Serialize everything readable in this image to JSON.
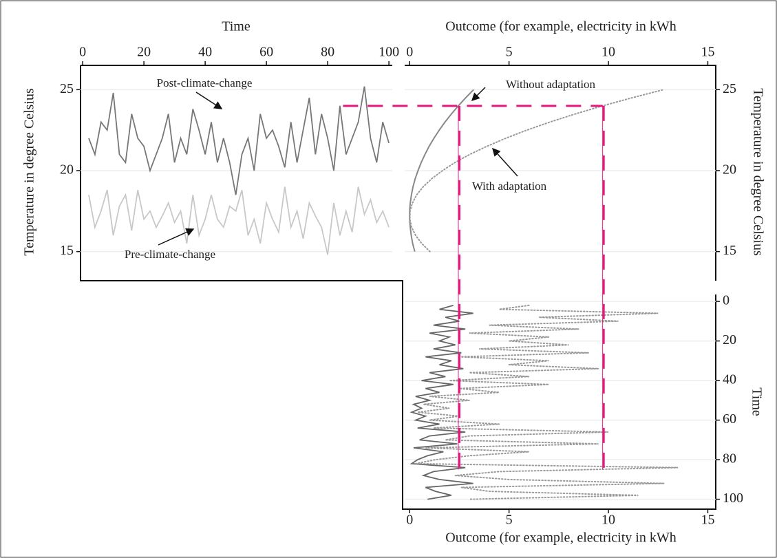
{
  "chart_data": [
    {
      "type": "line",
      "xlabel": "Time",
      "ylabel": "Temperature in degree Celsius",
      "x": [
        2,
        4,
        6,
        8,
        10,
        12,
        14,
        16,
        18,
        20,
        22,
        24,
        26,
        28,
        30,
        32,
        34,
        36,
        38,
        40,
        42,
        44,
        46,
        48,
        50,
        52,
        54,
        56,
        58,
        60,
        62,
        64,
        66,
        68,
        70,
        72,
        74,
        76,
        78,
        80,
        82,
        84,
        86,
        88,
        90,
        92,
        94,
        96,
        98,
        100
      ],
      "series": [
        {
          "name": "Post-climate-change",
          "color": "#777777",
          "values": [
            22,
            21,
            23,
            22.5,
            24.8,
            21,
            20.5,
            23.5,
            22,
            21.5,
            20,
            21,
            22,
            23.5,
            20.5,
            22,
            21,
            23.8,
            22.5,
            21,
            23,
            20.5,
            22,
            20.5,
            18.5,
            21,
            22,
            20,
            23.5,
            22,
            22.5,
            21.5,
            20.2,
            23,
            20.5,
            22.5,
            24.5,
            21,
            23.5,
            22,
            20,
            24,
            21,
            22,
            23,
            25.2,
            22,
            20.5,
            23,
            21.7
          ]
        },
        {
          "name": "Pre-climate-change",
          "color": "#c8c8c8",
          "values": [
            18.5,
            16.5,
            17.5,
            18.8,
            16,
            17.8,
            18.5,
            16.3,
            18.8,
            17,
            17.5,
            16.5,
            17.2,
            18,
            16.8,
            17.5,
            15.5,
            18.5,
            16,
            17,
            18.5,
            17,
            16.5,
            17.8,
            17.5,
            18.8,
            16,
            17,
            15.5,
            18,
            17,
            16.2,
            19,
            16.5,
            17.5,
            15.8,
            18,
            17.2,
            16.5,
            14.8,
            18,
            16,
            17.5,
            16.2,
            19,
            17.3,
            18.2,
            16.8,
            17.5,
            16.5
          ]
        }
      ],
      "xlim": [
        -0.7,
        101.1
      ],
      "xticks": [
        0,
        20,
        40,
        60,
        80,
        100
      ],
      "ylim": [
        13.2,
        26.5
      ],
      "yticks": [
        15,
        20,
        25
      ],
      "grid": true
    },
    {
      "type": "curve",
      "xlabel": "Outcome (for example, electricity in kWh",
      "ylabel": "Temperature in degree Celsius",
      "series": [
        {
          "name": "Without adaptation",
          "color": "#888888",
          "dashed": false,
          "x": [
            0.26,
            0.15,
            0.08,
            0.03,
            0,
            0,
            0.03,
            0.09,
            0.17,
            0.28,
            0.42,
            0.58,
            0.77,
            0.98,
            1.22,
            1.49,
            1.78,
            2.1,
            2.45,
            2.82,
            3.22
          ],
          "values": [
            15,
            15.5,
            16,
            16.5,
            17,
            17.5,
            18,
            18.5,
            19,
            19.5,
            20,
            20.5,
            21,
            21.5,
            22,
            22.5,
            23,
            23.5,
            24,
            24.5,
            25
          ]
        },
        {
          "name": "With adaptation",
          "color": "#999999",
          "dashed": true,
          "x": [
            1.02,
            0.61,
            0.3,
            0.1,
            0.01,
            0.02,
            0.14,
            0.35,
            0.68,
            1.11,
            1.65,
            2.28,
            3.03,
            3.88,
            4.84,
            5.9,
            7.06,
            8.33,
            9.71,
            11.19,
            12.78
          ],
          "values": [
            15,
            15.5,
            16,
            16.5,
            17,
            17.5,
            18,
            18.5,
            19,
            19.5,
            20,
            20.5,
            21,
            21.5,
            22,
            22.5,
            23,
            23.5,
            24,
            24.5,
            25
          ]
        }
      ],
      "xlim": [
        -0.25,
        15.4
      ],
      "xticks": [
        0,
        5,
        10,
        15
      ],
      "ylim": [
        13.2,
        26.5
      ],
      "yticks": [
        15,
        20,
        25
      ],
      "grid": true
    },
    {
      "type": "horizontal-line",
      "xlabel": "Outcome (for example, electricity in kWh",
      "ylabel": "Time",
      "time": [
        2,
        4,
        6,
        8,
        10,
        12,
        14,
        16,
        18,
        20,
        22,
        24,
        26,
        28,
        30,
        32,
        34,
        36,
        38,
        40,
        42,
        44,
        46,
        48,
        50,
        52,
        54,
        56,
        58,
        60,
        62,
        64,
        66,
        68,
        70,
        72,
        74,
        76,
        78,
        80,
        82,
        84,
        86,
        88,
        90,
        92,
        94,
        96,
        98,
        100
      ],
      "series": [
        {
          "color": "#666666",
          "dashed": false,
          "values": [
            2.2,
            1.5,
            3.2,
            1.8,
            2.5,
            1.2,
            2.8,
            1,
            2,
            1.5,
            2.3,
            1.2,
            2.6,
            0.8,
            2.1,
            1.5,
            2.7,
            1,
            1.8,
            0.6,
            2.2,
            0.8,
            1.5,
            0.3,
            1,
            0.2,
            0.6,
            0.1,
            0.8,
            0.3,
            1.5,
            0.4,
            2.8,
            1,
            0.5,
            2.4,
            0.2,
            1.7,
            0.9,
            0.4,
            0.1,
            2.8,
            1.2,
            0.7,
            1.5,
            3.2,
            0.8,
            1.3,
            2.1,
            0.9
          ]
        },
        {
          "color": "#999999",
          "dashed": true,
          "values": [
            6,
            4.5,
            12.5,
            6.5,
            10.5,
            4,
            8.5,
            3,
            7,
            5,
            8,
            3.5,
            9,
            2.5,
            7,
            5,
            9.5,
            3,
            6,
            2,
            7,
            2.5,
            4.5,
            1,
            3,
            0.7,
            2,
            0.4,
            2.5,
            1,
            4.5,
            1.2,
            10,
            3,
            1.8,
            9.5,
            0.8,
            6,
            3,
            1.3,
            0.3,
            13.5,
            4.5,
            2.3,
            5,
            12.8,
            2.6,
            4,
            11.5,
            3
          ]
        }
      ],
      "xlim": [
        -0.25,
        15.4
      ],
      "xticks": [
        0,
        5,
        10,
        15
      ],
      "ylim": [
        105,
        -3.5
      ],
      "yticks": [
        0,
        20,
        40,
        60,
        80,
        100
      ],
      "grid": true
    }
  ],
  "highlight": {
    "temperature": 24,
    "time": 85,
    "outcomes": [
      2.45,
      9.71
    ],
    "color": "#e8177f"
  }
}
